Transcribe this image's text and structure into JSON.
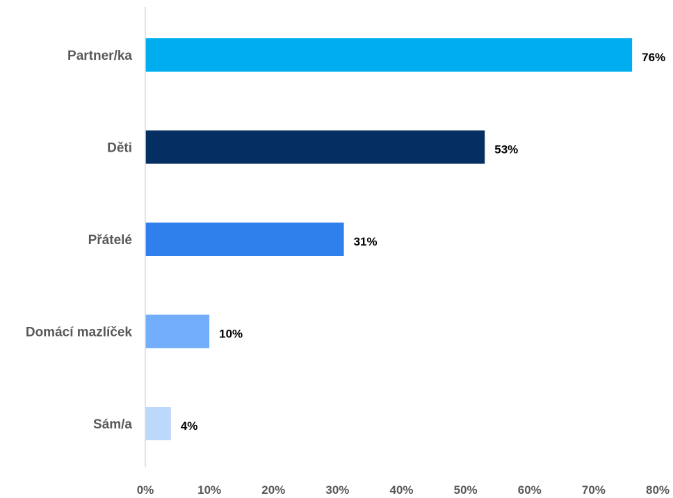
{
  "chart_data": {
    "type": "bar",
    "orientation": "horizontal",
    "categories": [
      "Partner/ka",
      "Děti",
      "Přátelé",
      "Domácí mazlíček",
      "Sám/a"
    ],
    "values": [
      76,
      53,
      31,
      10,
      4
    ],
    "value_labels": [
      "76%",
      "53%",
      "31%",
      "10%",
      "4%"
    ],
    "colors": [
      "#00aeef",
      "#052f62",
      "#2f80ed",
      "#72aefb",
      "#bcd8fb"
    ],
    "x_ticks": [
      0,
      10,
      20,
      30,
      40,
      50,
      60,
      70,
      80
    ],
    "x_tick_labels": [
      "0%",
      "10%",
      "20%",
      "30%",
      "40%",
      "50%",
      "60%",
      "70%",
      "80%"
    ],
    "xlim": [
      0,
      80
    ],
    "grid": false,
    "legend": "none",
    "title": "",
    "xlabel": "",
    "ylabel": ""
  }
}
